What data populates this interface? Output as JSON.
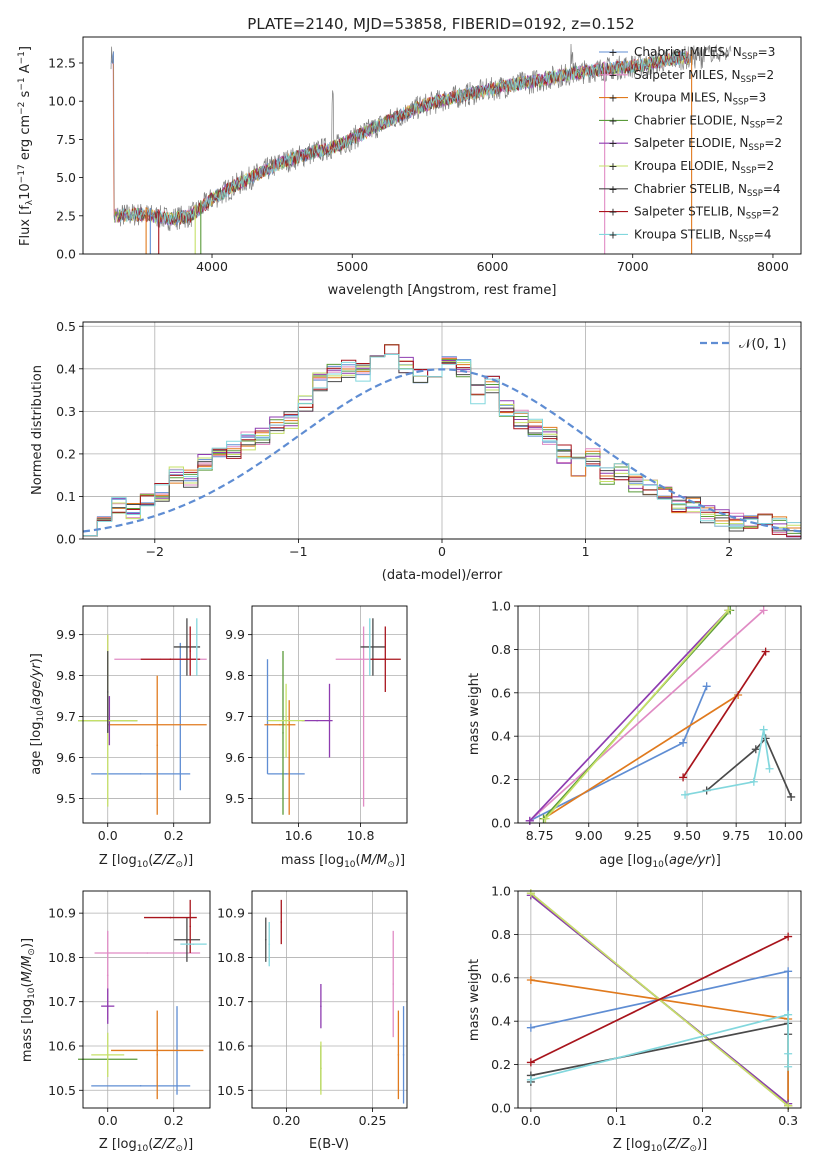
{
  "title": "PLATE=2140, MJD=53858, FIBERID=0192, z=0.152",
  "models": [
    {
      "name": "Chabrier MILES, N_SSP=3",
      "label": "Chabrier MILES, N",
      "sub": "SSP",
      "tail": "=3",
      "color": "#5f8dd3"
    },
    {
      "name": "Salpeter MILES, N_SSP=2",
      "label": "Salpeter MILES, N",
      "sub": "SSP",
      "tail": "=2",
      "color": "#e08bc4"
    },
    {
      "name": "Kroupa MILES, N_SSP=3",
      "label": "Kroupa MILES, N",
      "sub": "SSP",
      "tail": "=3",
      "color": "#e07a1e"
    },
    {
      "name": "Chabrier ELODIE, N_SSP=2",
      "label": "Chabrier ELODIE, N",
      "sub": "SSP",
      "tail": "=2",
      "color": "#5a9a3a"
    },
    {
      "name": "Salpeter ELODIE, N_SSP=2",
      "label": "Salpeter ELODIE, N",
      "sub": "SSP",
      "tail": "=2",
      "color": "#8e3cb0"
    },
    {
      "name": "Kroupa ELODIE, N_SSP=2",
      "label": "Kroupa ELODIE, N",
      "sub": "SSP",
      "tail": "=2",
      "color": "#c5e067"
    },
    {
      "name": "Chabrier STELIB, N_SSP=4",
      "label": "Chabrier STELIB, N",
      "sub": "SSP",
      "tail": "=4",
      "color": "#4a4a4a"
    },
    {
      "name": "Salpeter STELIB, N_SSP=2",
      "label": "Salpeter STELIB, N",
      "sub": "SSP",
      "tail": "=2",
      "color": "#a8141c"
    },
    {
      "name": "Kroupa STELIB, N_SSP=4",
      "label": "Kroupa STELIB, N",
      "sub": "SSP",
      "tail": "=4",
      "color": "#82d7dd"
    }
  ],
  "chart_data": [
    {
      "id": "spectrum",
      "type": "line",
      "xlabel": "wavelength [Angstrom, rest frame]",
      "ylabel": "Flux [f_λ 10^-17 erg cm^-2 s^-1 A^-1]",
      "xlim": [
        3080,
        8200
      ],
      "ylim": [
        0,
        14.2
      ],
      "xticks": [
        4000,
        5000,
        6000,
        7000,
        8000
      ],
      "yticks": [
        0.0,
        2.5,
        5.0,
        7.5,
        10.0,
        12.5
      ],
      "legend": "top-right",
      "grid": false,
      "continuum": [
        [
          3300,
          2.5
        ],
        [
          3500,
          2.6
        ],
        [
          3700,
          2.3
        ],
        [
          3850,
          2.5
        ],
        [
          4000,
          3.6
        ],
        [
          4150,
          4.4
        ],
        [
          4300,
          5.1
        ],
        [
          4500,
          6.0
        ],
        [
          4700,
          6.6
        ],
        [
          4900,
          7.1
        ],
        [
          5100,
          8.0
        ],
        [
          5300,
          8.9
        ],
        [
          5500,
          9.7
        ],
        [
          5700,
          10.2
        ],
        [
          5900,
          10.6
        ],
        [
          6100,
          11.0
        ],
        [
          6300,
          11.3
        ],
        [
          6500,
          11.7
        ],
        [
          6700,
          12.0
        ],
        [
          6900,
          12.2
        ],
        [
          7100,
          12.4
        ],
        [
          7300,
          12.8
        ],
        [
          7500,
          12.9
        ]
      ],
      "data_extent": [
        3280,
        7700
      ],
      "model_extent": [
        3280,
        7400
      ]
    },
    {
      "id": "residuals",
      "type": "line",
      "xlabel": "(data-model)/error",
      "ylabel": "Normed distribution",
      "xlim": [
        -2.5,
        2.5
      ],
      "ylim": [
        0,
        0.51
      ],
      "xticks": [
        -2,
        -1,
        0,
        1,
        2
      ],
      "yticks": [
        0.0,
        0.1,
        0.2,
        0.3,
        0.4,
        0.5
      ],
      "grid": true,
      "legend": "top-right",
      "normal_label": "𝒩(0, 1)",
      "normal_color": "#5f8dd3",
      "hist_centers": [
        -2.45,
        -2.35,
        -2.25,
        -2.15,
        -2.05,
        -1.95,
        -1.85,
        -1.75,
        -1.65,
        -1.55,
        -1.45,
        -1.35,
        -1.25,
        -1.15,
        -1.05,
        -0.95,
        -0.85,
        -0.75,
        -0.65,
        -0.55,
        -0.45,
        -0.35,
        -0.25,
        -0.15,
        -0.05,
        0.05,
        0.15,
        0.25,
        0.35,
        0.45,
        0.55,
        0.65,
        0.75,
        0.85,
        0.95,
        1.05,
        1.15,
        1.25,
        1.35,
        1.45,
        1.55,
        1.65,
        1.75,
        1.85,
        1.95,
        2.05,
        2.15,
        2.25,
        2.35,
        2.45
      ],
      "hist_base": [
        0.03,
        0.04,
        0.08,
        0.07,
        0.09,
        0.11,
        0.15,
        0.14,
        0.18,
        0.2,
        0.21,
        0.23,
        0.24,
        0.27,
        0.28,
        0.32,
        0.37,
        0.39,
        0.4,
        0.39,
        0.42,
        0.44,
        0.41,
        0.38,
        0.4,
        0.43,
        0.4,
        0.34,
        0.36,
        0.31,
        0.28,
        0.26,
        0.24,
        0.2,
        0.17,
        0.19,
        0.15,
        0.16,
        0.13,
        0.12,
        0.1,
        0.08,
        0.08,
        0.06,
        0.05,
        0.04,
        0.04,
        0.04,
        0.03,
        0.02
      ]
    },
    {
      "id": "age-vs-Z",
      "type": "scatter",
      "xlabel": "Z [log10(Z/Z⊙)]",
      "ylabel": "age [log10(age/yr)]",
      "xlim": [
        -0.075,
        0.31
      ],
      "ylim": [
        9.44,
        9.97
      ],
      "xticks": [
        0.0,
        0.2
      ],
      "yticks": [
        9.5,
        9.6,
        9.7,
        9.8,
        9.9
      ],
      "grid": true,
      "points": [
        {
          "model": 0,
          "x": 0.1,
          "y": 9.56,
          "xerr": 0.15,
          "yerr": 0.0
        },
        {
          "model": 0,
          "x": 0.22,
          "y": 9.7,
          "xerr": 0.0,
          "yerr": 0.18
        },
        {
          "model": 1,
          "x": 0.0,
          "y": 9.83,
          "xerr": 0.0,
          "yerr": 0.07
        },
        {
          "model": 1,
          "x": 0.16,
          "y": 9.84,
          "xerr": 0.14,
          "yerr": 0.0
        },
        {
          "model": 2,
          "x": 0.15,
          "y": 9.68,
          "xerr": 0.15,
          "yerr": 0.0
        },
        {
          "model": 2,
          "x": 0.15,
          "y": 9.63,
          "xerr": 0.0,
          "yerr": 0.17
        },
        {
          "model": 3,
          "x": 0.0,
          "y": 9.69,
          "xerr": 0.09,
          "yerr": 0.0
        },
        {
          "model": 4,
          "x": 0.005,
          "y": 9.69,
          "xerr": 0.0,
          "yerr": 0.06
        },
        {
          "model": 5,
          "x": 0.0,
          "y": 9.69,
          "xerr": 0.09,
          "yerr": 0.21
        },
        {
          "model": 6,
          "x": 0.0,
          "y": 9.76,
          "xerr": 0.0,
          "yerr": 0.1
        },
        {
          "model": 6,
          "x": 0.24,
          "y": 9.87,
          "xerr": 0.04,
          "yerr": 0.07
        },
        {
          "model": 7,
          "x": 0.19,
          "y": 9.84,
          "xerr": 0.09,
          "yerr": 0.0
        },
        {
          "model": 7,
          "x": 0.25,
          "y": 9.86,
          "xerr": 0.0,
          "yerr": 0.06
        },
        {
          "model": 8,
          "x": 0.27,
          "y": 9.87,
          "xerr": 0.0,
          "yerr": 0.07
        }
      ]
    },
    {
      "id": "age-vs-mass",
      "type": "scatter",
      "xlabel": "mass [log10(M/M⊙)]",
      "ylabel": "",
      "xlim": [
        10.45,
        10.95
      ],
      "ylim": [
        9.44,
        9.97
      ],
      "xticks": [
        10.6,
        10.8
      ],
      "yticks": [
        9.5,
        9.6,
        9.7,
        9.8,
        9.9
      ],
      "grid": true,
      "points": [
        {
          "model": 0,
          "x": 10.5,
          "y": 9.7,
          "xerr": 0.0,
          "yerr": 0.14
        },
        {
          "model": 0,
          "x": 10.56,
          "y": 9.56,
          "xerr": 0.06,
          "yerr": 0.0
        },
        {
          "model": 1,
          "x": 10.8,
          "y": 9.84,
          "xerr": 0.08,
          "yerr": 0.0
        },
        {
          "model": 1,
          "x": 10.81,
          "y": 9.7,
          "xerr": 0.0,
          "yerr": 0.22
        },
        {
          "model": 2,
          "x": 10.54,
          "y": 9.68,
          "xerr": 0.05,
          "yerr": 0.0
        },
        {
          "model": 2,
          "x": 10.57,
          "y": 9.6,
          "xerr": 0.0,
          "yerr": 0.14
        },
        {
          "model": 3,
          "x": 10.55,
          "y": 9.66,
          "xerr": 0.0,
          "yerr": 0.2
        },
        {
          "model": 4,
          "x": 10.66,
          "y": 9.69,
          "xerr": 0.05,
          "yerr": 0.0
        },
        {
          "model": 4,
          "x": 10.7,
          "y": 9.69,
          "xerr": 0.0,
          "yerr": 0.09
        },
        {
          "model": 5,
          "x": 10.56,
          "y": 9.69,
          "xerr": 0.06,
          "yerr": 0.09
        },
        {
          "model": 6,
          "x": 10.84,
          "y": 9.87,
          "xerr": 0.04,
          "yerr": 0.07
        },
        {
          "model": 7,
          "x": 10.88,
          "y": 9.84,
          "xerr": 0.05,
          "yerr": 0.08
        },
        {
          "model": 8,
          "x": 10.83,
          "y": 9.87,
          "xerr": 0.0,
          "yerr": 0.07
        }
      ]
    },
    {
      "id": "weight-vs-age",
      "type": "line",
      "xlabel": "age [log10(age/yr)]",
      "ylabel": "mass weight",
      "xlim": [
        8.64,
        10.08
      ],
      "ylim": [
        0,
        1
      ],
      "xticks": [
        8.75,
        9.0,
        9.25,
        9.5,
        9.75,
        10.0
      ],
      "yticks": [
        0.0,
        0.2,
        0.4,
        0.6,
        0.8,
        1.0
      ],
      "grid": true,
      "series": [
        {
          "model": 0,
          "x": [
            8.7,
            9.48,
            9.6
          ],
          "y": [
            0.01,
            0.37,
            0.63
          ]
        },
        {
          "model": 1,
          "x": [
            8.7,
            9.89
          ],
          "y": [
            0.01,
            0.98
          ]
        },
        {
          "model": 2,
          "x": [
            8.77,
            9.76
          ],
          "y": [
            0.02,
            0.59
          ]
        },
        {
          "model": 3,
          "x": [
            8.77,
            9.72
          ],
          "y": [
            0.02,
            0.98
          ]
        },
        {
          "model": 4,
          "x": [
            8.7,
            9.71
          ],
          "y": [
            0.01,
            0.98
          ]
        },
        {
          "model": 5,
          "x": [
            8.78,
            9.71
          ],
          "y": [
            0.02,
            0.98
          ]
        },
        {
          "model": 6,
          "x": [
            9.6,
            9.85,
            9.9,
            10.03
          ],
          "y": [
            0.15,
            0.34,
            0.39,
            0.12
          ]
        },
        {
          "model": 7,
          "x": [
            9.48,
            9.9
          ],
          "y": [
            0.21,
            0.79
          ]
        },
        {
          "model": 8,
          "x": [
            9.49,
            9.84,
            9.89,
            9.92
          ],
          "y": [
            0.13,
            0.19,
            0.43,
            0.25
          ]
        }
      ]
    },
    {
      "id": "mass-vs-Z",
      "type": "scatter",
      "xlabel": "Z [log10(Z/Z⊙)]",
      "ylabel": "mass [log10(M/M⊙)]",
      "xlim": [
        -0.075,
        0.31
      ],
      "ylim": [
        10.46,
        10.95
      ],
      "xticks": [
        0.0,
        0.2
      ],
      "yticks": [
        10.5,
        10.6,
        10.7,
        10.8,
        10.9
      ],
      "grid": true,
      "points": [
        {
          "model": 0,
          "x": 0.1,
          "y": 10.51,
          "xerr": 0.15,
          "yerr": 0.0
        },
        {
          "model": 0,
          "x": 0.21,
          "y": 10.59,
          "xerr": 0.0,
          "yerr": 0.1
        },
        {
          "model": 1,
          "x": 0.12,
          "y": 10.81,
          "xerr": 0.16,
          "yerr": 0.0
        },
        {
          "model": 1,
          "x": 0.0,
          "y": 10.76,
          "xerr": 0.0,
          "yerr": 0.1
        },
        {
          "model": 2,
          "x": 0.15,
          "y": 10.59,
          "xerr": 0.14,
          "yerr": 0.0
        },
        {
          "model": 2,
          "x": 0.15,
          "y": 10.58,
          "xerr": 0.0,
          "yerr": 0.1
        },
        {
          "model": 3,
          "x": 0.0,
          "y": 10.57,
          "xerr": 0.09,
          "yerr": 0.0
        },
        {
          "model": 4,
          "x": 0.0,
          "y": 10.69,
          "xerr": 0.02,
          "yerr": 0.04
        },
        {
          "model": 5,
          "x": 0.0,
          "y": 10.58,
          "xerr": 0.05,
          "yerr": 0.05
        },
        {
          "model": 6,
          "x": 0.24,
          "y": 10.84,
          "xerr": 0.04,
          "yerr": 0.05
        },
        {
          "model": 7,
          "x": 0.19,
          "y": 10.89,
          "xerr": 0.08,
          "yerr": 0.0
        },
        {
          "model": 7,
          "x": 0.25,
          "y": 10.87,
          "xerr": 0.0,
          "yerr": 0.06
        },
        {
          "model": 8,
          "x": 0.26,
          "y": 10.83,
          "xerr": 0.04,
          "yerr": 0.0
        }
      ]
    },
    {
      "id": "mass-vs-EBV",
      "type": "scatter",
      "xlabel": "E(B-V)",
      "ylabel": "",
      "xlim": [
        0.18,
        0.27
      ],
      "ylim": [
        10.46,
        10.95
      ],
      "xticks": [
        0.2,
        0.25
      ],
      "yticks": [
        10.5,
        10.6,
        10.7,
        10.8,
        10.9
      ],
      "grid": true,
      "points": [
        {
          "model": 0,
          "x": 0.268,
          "y": 10.58,
          "xerr": 0.0,
          "yerr": 0.11
        },
        {
          "model": 1,
          "x": 0.262,
          "y": 10.74,
          "xerr": 0.0,
          "yerr": 0.12
        },
        {
          "model": 2,
          "x": 0.265,
          "y": 10.58,
          "xerr": 0.0,
          "yerr": 0.1
        },
        {
          "model": 3,
          "x": 0.22,
          "y": 10.55,
          "xerr": 0.0,
          "yerr": 0.05
        },
        {
          "model": 4,
          "x": 0.22,
          "y": 10.69,
          "xerr": 0.0,
          "yerr": 0.05
        },
        {
          "model": 5,
          "x": 0.22,
          "y": 10.55,
          "xerr": 0.0,
          "yerr": 0.06
        },
        {
          "model": 6,
          "x": 0.188,
          "y": 10.84,
          "xerr": 0.0,
          "yerr": 0.05
        },
        {
          "model": 7,
          "x": 0.197,
          "y": 10.88,
          "xerr": 0.0,
          "yerr": 0.05
        },
        {
          "model": 8,
          "x": 0.19,
          "y": 10.83,
          "xerr": 0.0,
          "yerr": 0.05
        }
      ]
    },
    {
      "id": "weight-vs-Z",
      "type": "line",
      "xlabel": "Z [log10(Z/Z⊙)]",
      "ylabel": "mass weight",
      "xlim": [
        -0.015,
        0.315
      ],
      "ylim": [
        0,
        1
      ],
      "xticks": [
        0.0,
        0.1,
        0.2,
        0.3
      ],
      "yticks": [
        0.0,
        0.2,
        0.4,
        0.6,
        0.8,
        1.0
      ],
      "grid": true,
      "series": [
        {
          "model": 0,
          "x": [
            0.0,
            0.3,
            0.3
          ],
          "y": [
            0.37,
            0.63,
            0.01
          ]
        },
        {
          "model": 1,
          "x": [
            0.0,
            0.3
          ],
          "y": [
            0.99,
            0.01
          ]
        },
        {
          "model": 2,
          "x": [
            0.0,
            0.3,
            0.3
          ],
          "y": [
            0.59,
            0.41,
            0.01
          ]
        },
        {
          "model": 3,
          "x": [
            0.0,
            0.3
          ],
          "y": [
            0.98,
            0.02
          ]
        },
        {
          "model": 4,
          "x": [
            0.0,
            0.3
          ],
          "y": [
            0.98,
            0.02
          ]
        },
        {
          "model": 5,
          "x": [
            0.0,
            0.3
          ],
          "y": [
            0.99,
            0.01
          ]
        },
        {
          "model": 6,
          "x": [
            0.0,
            0.0,
            0.3,
            0.3
          ],
          "y": [
            0.12,
            0.15,
            0.39,
            0.34
          ]
        },
        {
          "model": 7,
          "x": [
            0.0,
            0.3
          ],
          "y": [
            0.21,
            0.79
          ]
        },
        {
          "model": 8,
          "x": [
            0.0,
            0.3,
            0.3,
            0.3
          ],
          "y": [
            0.13,
            0.43,
            0.25,
            0.19
          ]
        }
      ]
    }
  ]
}
